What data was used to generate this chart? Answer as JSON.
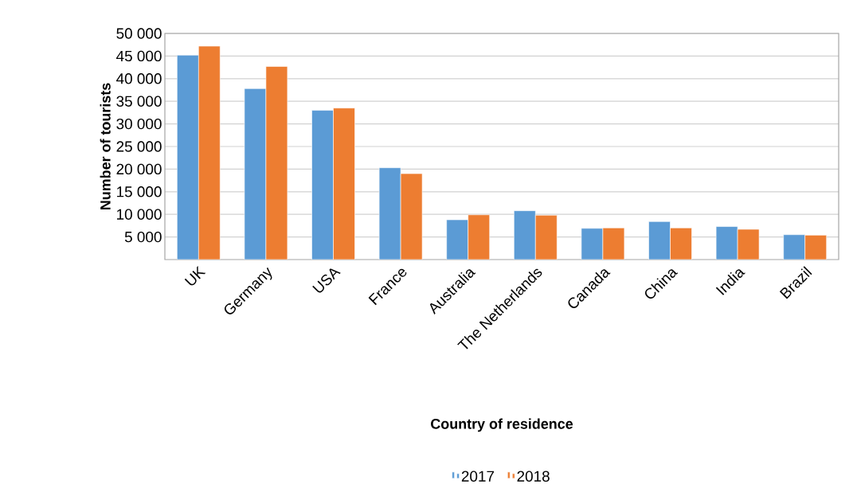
{
  "chart_data": {
    "type": "bar",
    "xlabel": "Country of residence",
    "ylabel": "Number of tourists",
    "categories": [
      "UK",
      "Germany",
      "USA",
      "France",
      "Australia",
      "The Netherlands",
      "Canada",
      "China",
      "India",
      "Brazil"
    ],
    "series": [
      {
        "name": "2017",
        "color": "#5b9bd5",
        "values": [
          45200,
          37800,
          33000,
          20300,
          8800,
          10800,
          6900,
          8400,
          7300,
          5500
        ]
      },
      {
        "name": "2018",
        "color": "#ed7d31",
        "values": [
          47200,
          42700,
          33500,
          19000,
          9900,
          9800,
          7000,
          7000,
          6700,
          5400
        ]
      }
    ],
    "ylim": [
      0,
      50000
    ],
    "yticks": [
      {
        "value": 5000,
        "label": "5 000"
      },
      {
        "value": 10000,
        "label": "10 000"
      },
      {
        "value": 15000,
        "label": "15 000"
      },
      {
        "value": 20000,
        "label": "20 000"
      },
      {
        "value": 25000,
        "label": "25 000"
      },
      {
        "value": 30000,
        "label": "30 000"
      },
      {
        "value": 35000,
        "label": "35 000"
      },
      {
        "value": 40000,
        "label": "40 000"
      },
      {
        "value": 45000,
        "label": "45 000"
      },
      {
        "value": 50000,
        "label": "50 000"
      }
    ],
    "grid": "y",
    "legend": "bottom"
  }
}
